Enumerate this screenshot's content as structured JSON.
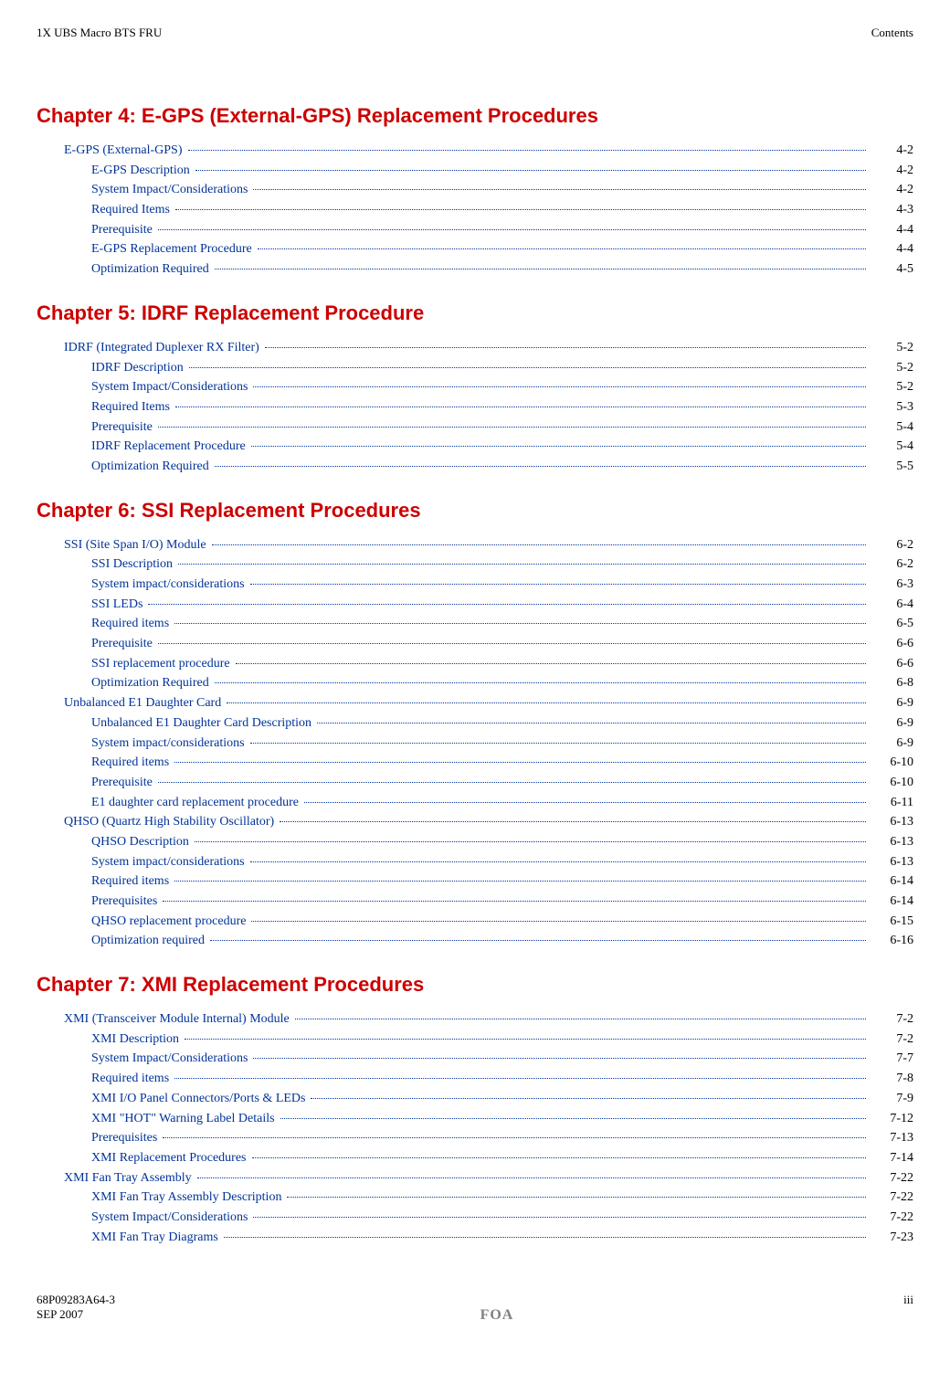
{
  "header": {
    "left": "1X UBS Macro BTS FRU",
    "right": "Contents"
  },
  "colors": {
    "chapter_title": "#cc0000",
    "link": "#003399",
    "text": "#000000",
    "footer_center": "#808080",
    "background": "#ffffff"
  },
  "typography": {
    "body_font": "Georgia, Times New Roman, serif",
    "chapter_font": "Verdana, Arial, sans-serif",
    "chapter_fontsize": 22,
    "toc_fontsize": 14,
    "header_fontsize": 13
  },
  "chapters": [
    {
      "title": "Chapter 4:  E-GPS (External-GPS) Replacement Procedures",
      "entries": [
        {
          "level": 1,
          "label": "E-GPS (External-GPS)",
          "page": "4-2"
        },
        {
          "level": 2,
          "label": "E-GPS Description",
          "page": "4-2"
        },
        {
          "level": 2,
          "label": "System Impact/Considerations",
          "page": "4-2"
        },
        {
          "level": 2,
          "label": "Required Items",
          "page": "4-3"
        },
        {
          "level": 2,
          "label": "Prerequisite",
          "page": "4-4"
        },
        {
          "level": 2,
          "label": "E-GPS Replacement Procedure",
          "page": "4-4"
        },
        {
          "level": 2,
          "label": "Optimization Required",
          "page": "4-5"
        }
      ]
    },
    {
      "title": "Chapter 5:  IDRF Replacement Procedure",
      "entries": [
        {
          "level": 1,
          "label": "IDRF (Integrated Duplexer RX Filter)",
          "page": "5-2"
        },
        {
          "level": 2,
          "label": "IDRF Description",
          "page": "5-2"
        },
        {
          "level": 2,
          "label": "System Impact/Considerations",
          "page": "5-2"
        },
        {
          "level": 2,
          "label": "Required Items",
          "page": "5-3"
        },
        {
          "level": 2,
          "label": "Prerequisite",
          "page": "5-4"
        },
        {
          "level": 2,
          "label": "IDRF Replacement Procedure",
          "page": "5-4"
        },
        {
          "level": 2,
          "label": "Optimization Required",
          "page": "5-5"
        }
      ]
    },
    {
      "title": "Chapter 6:  SSI Replacement Procedures",
      "entries": [
        {
          "level": 1,
          "label": "SSI (Site Span I/O) Module",
          "page": "6-2"
        },
        {
          "level": 2,
          "label": "SSI Description",
          "page": "6-2"
        },
        {
          "level": 2,
          "label": "System impact/considerations",
          "page": "6-3"
        },
        {
          "level": 2,
          "label": "SSI LEDs",
          "page": "6-4"
        },
        {
          "level": 2,
          "label": "Required items",
          "page": "6-5"
        },
        {
          "level": 2,
          "label": "Prerequisite",
          "page": "6-6"
        },
        {
          "level": 2,
          "label": "SSI replacement procedure",
          "page": "6-6"
        },
        {
          "level": 2,
          "label": "Optimization Required",
          "page": "6-8"
        },
        {
          "level": 1,
          "label": "Unbalanced E1 Daughter Card",
          "page": "6-9"
        },
        {
          "level": 2,
          "label": "Unbalanced E1 Daughter Card Description",
          "page": "6-9"
        },
        {
          "level": 2,
          "label": "System impact/considerations",
          "page": "6-9"
        },
        {
          "level": 2,
          "label": "Required items",
          "page": "6-10"
        },
        {
          "level": 2,
          "label": "Prerequisite",
          "page": "6-10"
        },
        {
          "level": 2,
          "label": "E1 daughter card replacement procedure",
          "page": "6-11"
        },
        {
          "level": 1,
          "label": "QHSO (Quartz High Stability Oscillator)",
          "page": "6-13"
        },
        {
          "level": 2,
          "label": "QHSO Description",
          "page": "6-13"
        },
        {
          "level": 2,
          "label": "System impact/considerations",
          "page": "6-13"
        },
        {
          "level": 2,
          "label": "Required items",
          "page": "6-14"
        },
        {
          "level": 2,
          "label": "Prerequisites",
          "page": "6-14"
        },
        {
          "level": 2,
          "label": "QHSO replacement procedure",
          "page": "6-15"
        },
        {
          "level": 2,
          "label": "Optimization required",
          "page": "6-16"
        }
      ]
    },
    {
      "title": "Chapter 7:  XMI Replacement Procedures",
      "entries": [
        {
          "level": 1,
          "label": "XMI (Transceiver Module Internal) Module",
          "page": "7-2"
        },
        {
          "level": 2,
          "label": "XMI Description",
          "page": "7-2"
        },
        {
          "level": 2,
          "label": "System Impact/Considerations",
          "page": "7-7"
        },
        {
          "level": 2,
          "label": "Required items",
          "page": "7-8"
        },
        {
          "level": 2,
          "label": "XMI I/O Panel Connectors/Ports & LEDs",
          "page": "7-9"
        },
        {
          "level": 2,
          "label": "XMI \"HOT\" Warning Label Details",
          "page": "7-12"
        },
        {
          "level": 2,
          "label": "Prerequisites",
          "page": "7-13"
        },
        {
          "level": 2,
          "label": "XMI Replacement Procedures",
          "page": "7-14"
        },
        {
          "level": 1,
          "label": "XMI Fan Tray Assembly",
          "page": "7-22"
        },
        {
          "level": 2,
          "label": "XMI Fan Tray Assembly Description",
          "page": "7-22"
        },
        {
          "level": 2,
          "label": "System Impact/Considerations",
          "page": "7-22"
        },
        {
          "level": 2,
          "label": "XMI Fan Tray Diagrams",
          "page": "7-23"
        }
      ]
    }
  ],
  "footer": {
    "doc_number": "68P09283A64-3",
    "page_number": "iii",
    "date": "SEP 2007",
    "center": "FOA"
  }
}
